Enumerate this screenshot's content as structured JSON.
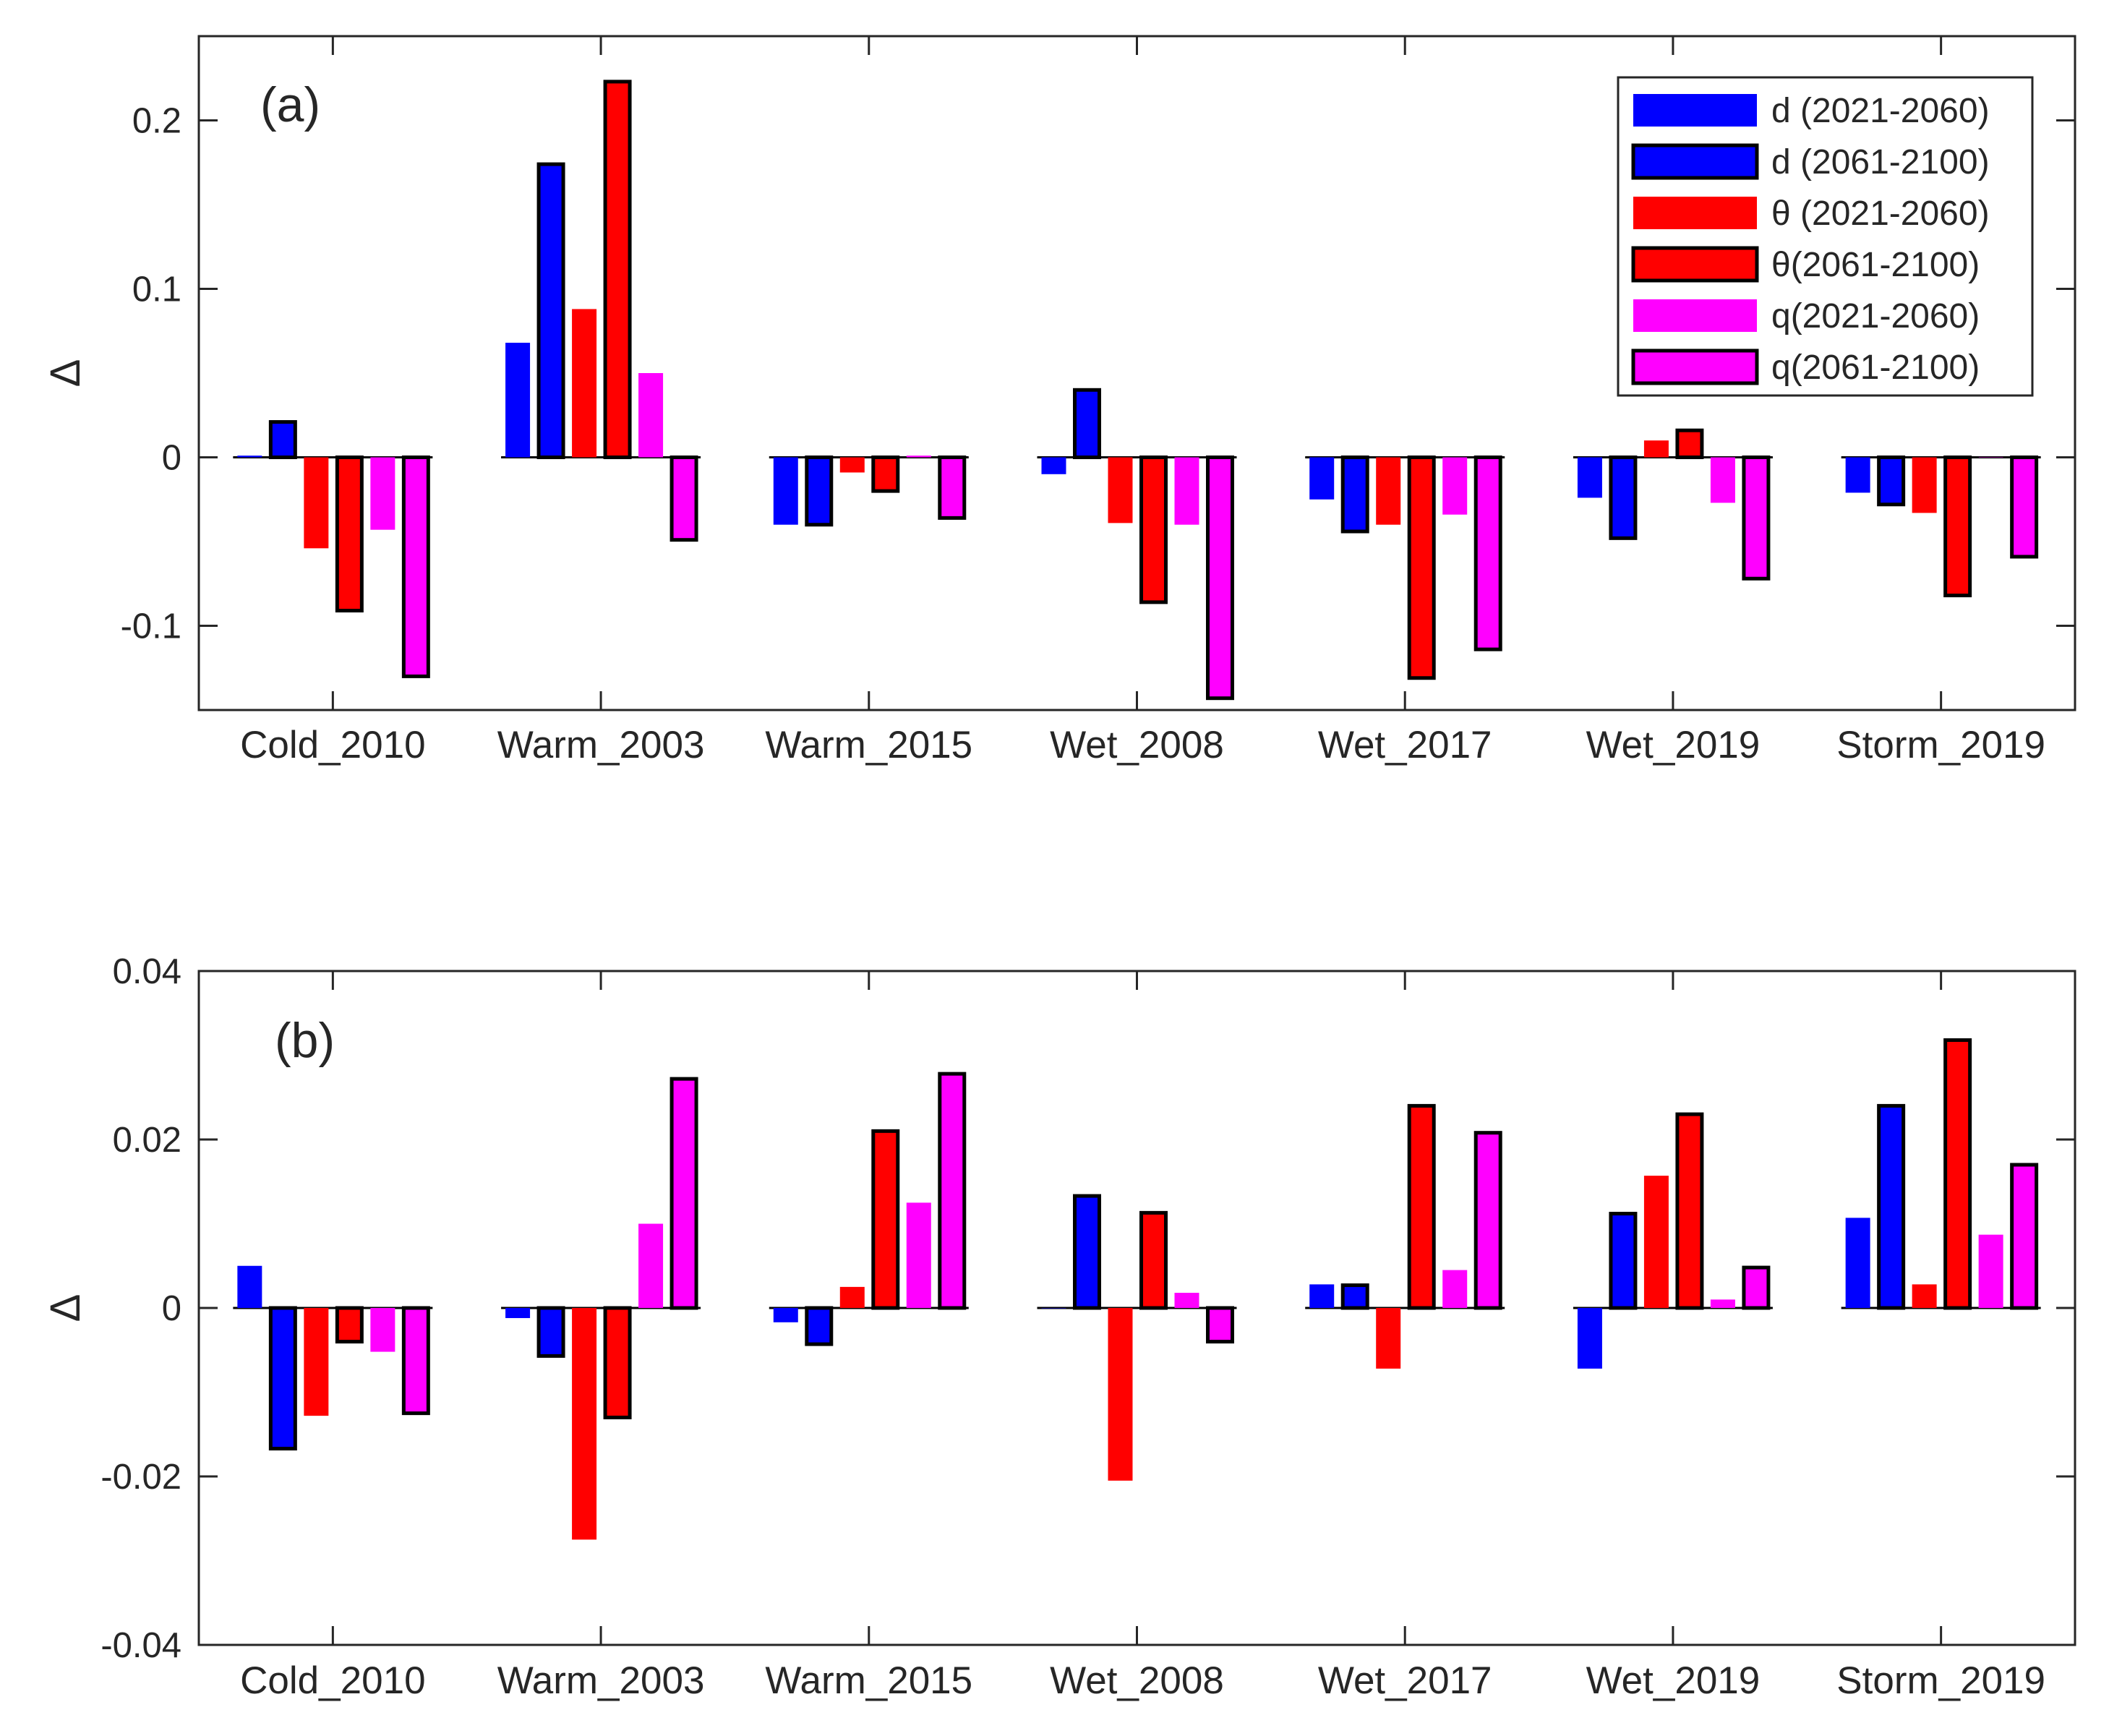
{
  "chart_data": [
    {
      "type": "bar",
      "panel_label": "(a)",
      "ylabel": "Δ",
      "ylim": [
        -0.15,
        0.25
      ],
      "yticks": [
        -0.1,
        0,
        0.1,
        0.2
      ],
      "ytick_labels": [
        "-0.1",
        "0",
        "0.1",
        "0.2"
      ],
      "categories": [
        "Cold_2010",
        "Warm_2003",
        "Warm_2015",
        "Wet_2008",
        "Wet_2017",
        "Wet_2019",
        "Storm_2019"
      ],
      "legend_position": "top-right",
      "grid": false,
      "series": [
        {
          "name": "d (2021-2060)",
          "color": "#0000ff",
          "outlined": false,
          "values": [
            0.001,
            0.068,
            -0.04,
            -0.01,
            -0.025,
            -0.024,
            -0.021
          ]
        },
        {
          "name": "d (2061-2100)",
          "color": "#0000ff",
          "outlined": true,
          "values": [
            0.021,
            0.174,
            -0.04,
            0.04,
            -0.044,
            -0.048,
            -0.028
          ]
        },
        {
          "name": "θ (2021-2060)",
          "color": "#ff0000",
          "outlined": false,
          "values": [
            -0.054,
            0.088,
            -0.009,
            -0.039,
            -0.04,
            0.01,
            -0.033
          ]
        },
        {
          "name": "θ(2061-2100)",
          "color": "#ff0000",
          "outlined": true,
          "values": [
            -0.091,
            0.223,
            -0.02,
            -0.086,
            -0.131,
            0.016,
            -0.082
          ]
        },
        {
          "name": "q(2021-2060)",
          "color": "#ff00ff",
          "outlined": false,
          "values": [
            -0.043,
            0.05,
            0.001,
            -0.04,
            -0.034,
            -0.027,
            0.0
          ]
        },
        {
          "name": "q(2061-2100)",
          "color": "#ff00ff",
          "outlined": true,
          "values": [
            -0.13,
            -0.049,
            -0.036,
            -0.143,
            -0.114,
            -0.072,
            -0.059
          ]
        }
      ]
    },
    {
      "type": "bar",
      "panel_label": "(b)",
      "ylabel": "Δ",
      "ylim": [
        -0.04,
        0.04
      ],
      "yticks": [
        -0.04,
        -0.02,
        0,
        0.02,
        0.04
      ],
      "ytick_labels": [
        "-0.04",
        "-0.02",
        "0",
        "0.02",
        "0.04"
      ],
      "categories": [
        "Cold_2010",
        "Warm_2003",
        "Warm_2015",
        "Wet_2008",
        "Wet_2017",
        "Wet_2019",
        "Storm_2019"
      ],
      "grid": false,
      "series": [
        {
          "name": "d (2021-2060)",
          "color": "#0000ff",
          "outlined": false,
          "values": [
            0.005,
            -0.0012,
            -0.0017,
            0.0,
            0.0028,
            -0.0072,
            0.0107
          ]
        },
        {
          "name": "d (2061-2100)",
          "color": "#0000ff",
          "outlined": true,
          "values": [
            -0.0167,
            -0.0057,
            -0.0043,
            0.0133,
            0.0027,
            0.0112,
            0.024
          ]
        },
        {
          "name": "θ (2021-2060)",
          "color": "#ff0000",
          "outlined": false,
          "values": [
            -0.0128,
            -0.0275,
            0.0025,
            -0.0205,
            -0.0072,
            0.0157,
            0.0028
          ]
        },
        {
          "name": "θ(2061-2100)",
          "color": "#ff0000",
          "outlined": true,
          "values": [
            -0.004,
            -0.013,
            0.021,
            0.0113,
            0.024,
            0.023,
            0.0318
          ]
        },
        {
          "name": "q(2021-2060)",
          "color": "#ff00ff",
          "outlined": false,
          "values": [
            -0.0052,
            0.01,
            0.0125,
            0.0018,
            0.0045,
            0.001,
            0.0087
          ]
        },
        {
          "name": "q(2061-2100)",
          "color": "#ff00ff",
          "outlined": true,
          "values": [
            -0.0125,
            0.0272,
            0.0278,
            -0.004,
            0.0208,
            0.0048,
            0.017
          ]
        }
      ]
    }
  ]
}
